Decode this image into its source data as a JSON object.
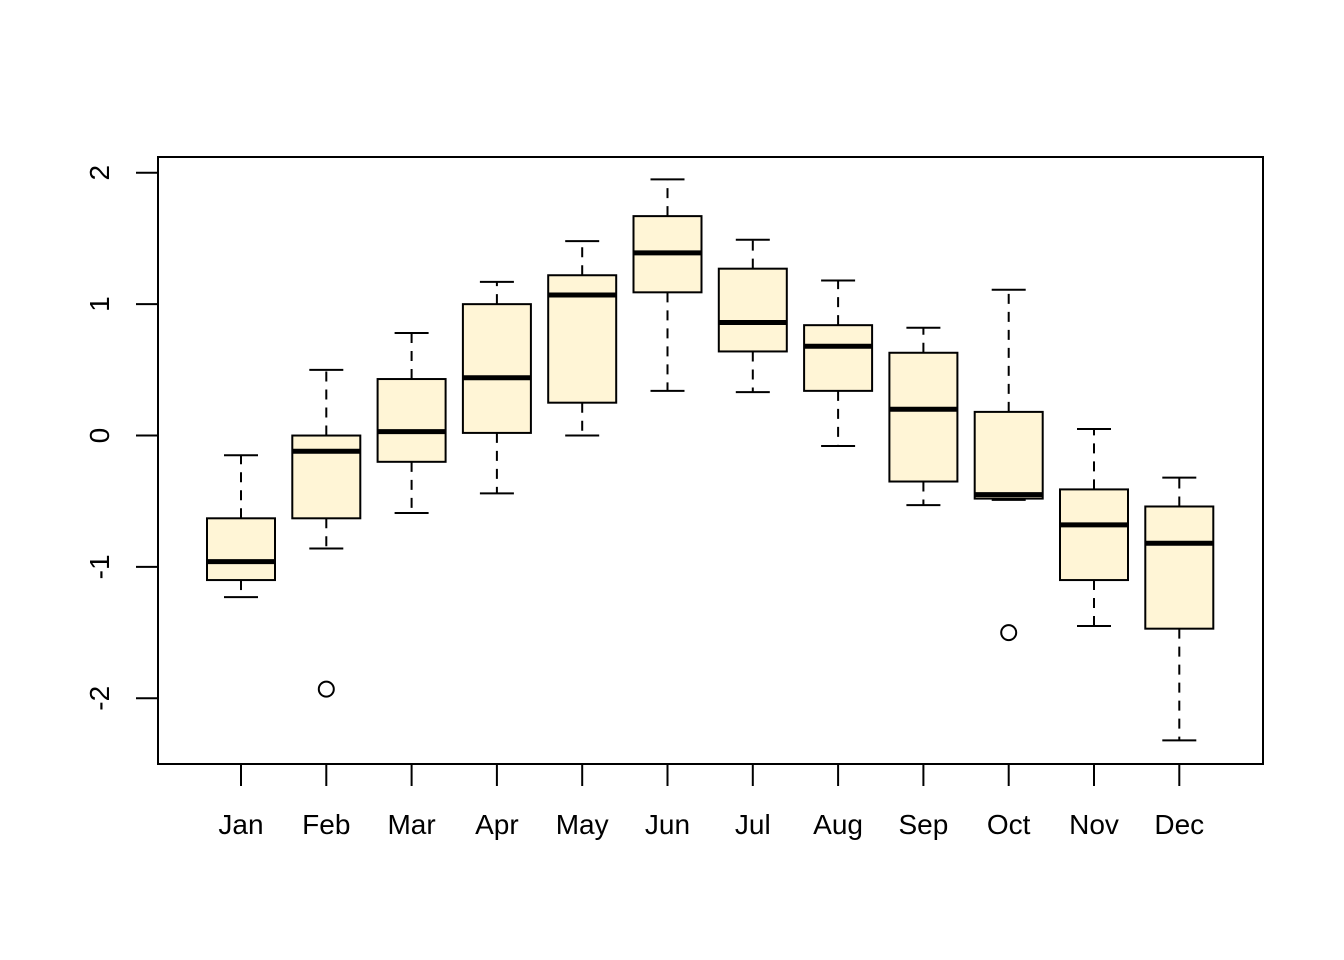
{
  "chart_data": {
    "type": "box",
    "title": "",
    "xlabel": "",
    "ylabel": "",
    "ylim": [
      -2.5,
      2.12
    ],
    "yticks": [
      -2,
      -1,
      0,
      1,
      2
    ],
    "ytick_labels": [
      "-2",
      "-1",
      "0",
      "1",
      "2"
    ],
    "grid": false,
    "legend": "none",
    "box_fill": "#FFF5D6",
    "line_color": "#000000",
    "categories": [
      "Jan",
      "Feb",
      "Mar",
      "Apr",
      "May",
      "Jun",
      "Jul",
      "Aug",
      "Sep",
      "Oct",
      "Nov",
      "Dec"
    ],
    "boxes": [
      {
        "whisker_low": -1.23,
        "q1": -1.1,
        "median": -0.96,
        "q3": -0.63,
        "whisker_high": -0.15,
        "outliers": []
      },
      {
        "whisker_low": -0.86,
        "q1": -0.63,
        "median": -0.12,
        "q3": 0.0,
        "whisker_high": 0.5,
        "outliers": [
          -1.93
        ]
      },
      {
        "whisker_low": -0.59,
        "q1": -0.2,
        "median": 0.03,
        "q3": 0.43,
        "whisker_high": 0.78,
        "outliers": []
      },
      {
        "whisker_low": -0.44,
        "q1": 0.02,
        "median": 0.44,
        "q3": 1.0,
        "whisker_high": 1.17,
        "outliers": []
      },
      {
        "whisker_low": 0.0,
        "q1": 0.25,
        "median": 1.07,
        "q3": 1.22,
        "whisker_high": 1.48,
        "outliers": []
      },
      {
        "whisker_low": 0.34,
        "q1": 1.09,
        "median": 1.39,
        "q3": 1.67,
        "whisker_high": 1.95,
        "outliers": []
      },
      {
        "whisker_low": 0.33,
        "q1": 0.64,
        "median": 0.86,
        "q3": 1.27,
        "whisker_high": 1.49,
        "outliers": []
      },
      {
        "whisker_low": -0.08,
        "q1": 0.34,
        "median": 0.68,
        "q3": 0.84,
        "whisker_high": 1.18,
        "outliers": []
      },
      {
        "whisker_low": -0.53,
        "q1": -0.35,
        "median": 0.2,
        "q3": 0.63,
        "whisker_high": 0.82,
        "outliers": []
      },
      {
        "whisker_low": -0.49,
        "q1": -0.48,
        "median": -0.45,
        "q3": 0.18,
        "whisker_high": 1.11,
        "outliers": [
          -1.5
        ]
      },
      {
        "whisker_low": -1.45,
        "q1": -1.1,
        "median": -0.68,
        "q3": -0.41,
        "whisker_high": 0.05,
        "outliers": []
      },
      {
        "whisker_low": -2.32,
        "q1": -1.47,
        "median": -0.82,
        "q3": -0.54,
        "whisker_high": -0.32,
        "outliers": []
      }
    ]
  }
}
